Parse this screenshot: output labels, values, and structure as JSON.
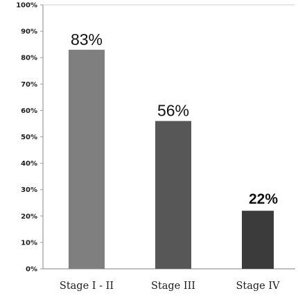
{
  "chart_data": {
    "type": "bar",
    "title": "",
    "xlabel": "",
    "ylabel": "",
    "categories": [
      "Stage I - II",
      "Stage III",
      "Stage IV"
    ],
    "values": [
      83,
      56,
      22
    ],
    "bar_labels": [
      "83%",
      "56%",
      "22%"
    ],
    "bar_colors": [
      "#7f7f7f",
      "#575757",
      "#3b3b3b"
    ],
    "bar_label_bold": [
      false,
      false,
      true
    ],
    "ylim": [
      0,
      100
    ],
    "yticks": [
      0,
      10,
      20,
      30,
      40,
      50,
      60,
      70,
      80,
      90,
      100
    ],
    "ytick_labels": [
      "0%",
      "10%",
      "20%",
      "30%",
      "40%",
      "50%",
      "60%",
      "70%",
      "80%",
      "90%",
      "100%"
    ],
    "grid": false,
    "legend": "none"
  }
}
